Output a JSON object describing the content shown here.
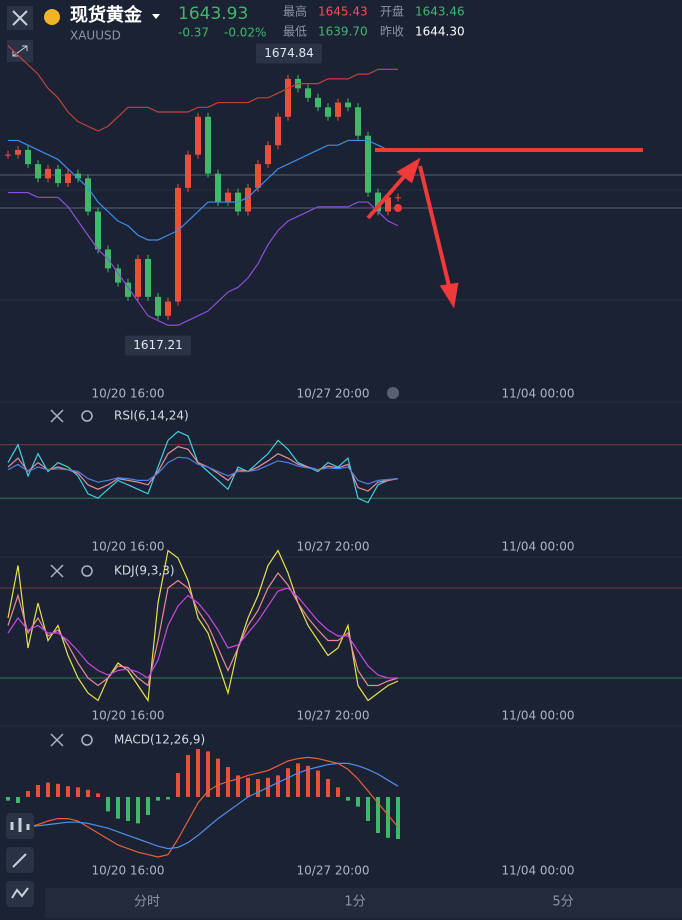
{
  "header": {
    "name": "现货黄金",
    "symbol": "XAUUSD",
    "price": "1643.93",
    "change": "-0.37",
    "change_pct": "-0.02%",
    "stats": [
      {
        "label": "最高",
        "value": "1645.43",
        "color": "#f0524f"
      },
      {
        "label": "开盘",
        "value": "1643.46",
        "color": "#3fb86a"
      },
      {
        "label": "最低",
        "value": "1639.70",
        "color": "#3fb86a"
      },
      {
        "label": "昨收",
        "value": "1644.30",
        "color": "#ffffff"
      }
    ]
  },
  "x_labels": [
    "10/20 16:00",
    "10/27 20:00",
    "11/04 00:00"
  ],
  "tabs": [
    "分时",
    "1分",
    "5分"
  ],
  "chart_data": [
    {
      "type": "candlestick",
      "ylim": [
        1615,
        1680
      ],
      "up_color": "#e8503a",
      "down_color": "#3fb86a",
      "closes": [
        1652,
        1653,
        1650,
        1647,
        1649,
        1646,
        1648,
        1647,
        1640,
        1632,
        1628,
        1625,
        1622,
        1630,
        1622,
        1618,
        1621,
        1645,
        1652,
        1660,
        1648,
        1642,
        1644,
        1640,
        1645,
        1650,
        1654,
        1660,
        1668,
        1666,
        1664,
        1662,
        1660,
        1663,
        1662,
        1656,
        1644,
        1640,
        1643,
        1643
      ],
      "lines": [
        {
          "color": "#c0433a",
          "values": [
            1675,
            1673,
            1671,
            1669,
            1666,
            1664,
            1661,
            1659,
            1658,
            1657,
            1658,
            1660,
            1662,
            1662,
            1662,
            1661,
            1661,
            1661,
            1661,
            1662,
            1662,
            1663,
            1663,
            1663,
            1663,
            1664,
            1664,
            1665,
            1666,
            1667,
            1667,
            1667,
            1668,
            1668,
            1668,
            1669,
            1669,
            1670,
            1670,
            1670
          ]
        },
        {
          "color": "#3d8ee8",
          "values": [
            1655,
            1655,
            1654,
            1653,
            1652,
            1651,
            1649,
            1647,
            1645,
            1642,
            1640,
            1638,
            1637,
            1635,
            1634,
            1634,
            1635,
            1636,
            1638,
            1640,
            1642,
            1642,
            1642,
            1642,
            1643,
            1645,
            1647,
            1649,
            1650,
            1651,
            1652,
            1653,
            1654,
            1654,
            1655,
            1655,
            1655,
            1654,
            1653,
            1653
          ]
        },
        {
          "color": "#8e4fd8",
          "values": [
            1644,
            1644,
            1644,
            1643,
            1643,
            1643,
            1641,
            1638,
            1635,
            1632,
            1630,
            1627,
            1624,
            1621,
            1618,
            1617,
            1616,
            1616,
            1617,
            1618,
            1619,
            1621,
            1623,
            1624,
            1626,
            1629,
            1633,
            1636,
            1638,
            1639,
            1640,
            1641,
            1641,
            1641,
            1641,
            1642,
            1642,
            1640,
            1638,
            1637
          ]
        }
      ],
      "annotations": [
        1674.84,
        1617.21
      ]
    },
    {
      "type": "line",
      "label": "RSI(6,14,24)",
      "ylim": [
        0,
        100
      ],
      "levels": [
        {
          "value": 80,
          "color": "#7a3b3f"
        },
        {
          "value": 20,
          "color": "#2f7a55"
        }
      ],
      "lines": [
        {
          "color": "#3fd0e0",
          "values": [
            60,
            80,
            45,
            70,
            50,
            60,
            55,
            45,
            25,
            20,
            30,
            40,
            35,
            30,
            25,
            55,
            85,
            95,
            90,
            60,
            50,
            40,
            30,
            55,
            50,
            60,
            70,
            85,
            75,
            60,
            55,
            50,
            60,
            55,
            65,
            20,
            15,
            35,
            40,
            42
          ]
        },
        {
          "color": "#e88a9a",
          "values": [
            55,
            65,
            50,
            60,
            52,
            55,
            52,
            48,
            35,
            30,
            35,
            42,
            40,
            38,
            35,
            50,
            70,
            78,
            75,
            60,
            55,
            48,
            40,
            52,
            50,
            55,
            62,
            70,
            65,
            58,
            55,
            52,
            56,
            54,
            58,
            32,
            28,
            38,
            40,
            42
          ]
        },
        {
          "color": "#4f7fe0",
          "values": [
            52,
            58,
            50,
            55,
            52,
            53,
            52,
            50,
            42,
            38,
            40,
            43,
            42,
            40,
            40,
            48,
            60,
            66,
            65,
            58,
            55,
            50,
            45,
            50,
            50,
            52,
            57,
            62,
            60,
            56,
            54,
            52,
            54,
            53,
            55,
            40,
            36,
            40,
            41,
            42
          ]
        }
      ]
    },
    {
      "type": "line",
      "label": "KDJ(9,3,3)",
      "ylim": [
        0,
        100
      ],
      "levels": [
        {
          "value": 80,
          "color": "#7a3b3f"
        },
        {
          "value": 20,
          "color": "#2f7a55"
        }
      ],
      "lines": [
        {
          "color": "#e8e04a",
          "values": [
            60,
            95,
            40,
            70,
            45,
            55,
            35,
            20,
            10,
            5,
            20,
            30,
            25,
            15,
            5,
            70,
            105,
            100,
            85,
            60,
            50,
            30,
            10,
            40,
            60,
            75,
            95,
            105,
            90,
            70,
            55,
            45,
            35,
            40,
            55,
            15,
            5,
            10,
            15,
            18
          ]
        },
        {
          "color": "#e88a9a",
          "values": [
            55,
            75,
            50,
            60,
            48,
            52,
            42,
            30,
            20,
            15,
            20,
            28,
            27,
            20,
            15,
            45,
            80,
            85,
            80,
            65,
            55,
            40,
            25,
            40,
            55,
            65,
            80,
            90,
            82,
            70,
            60,
            52,
            45,
            45,
            50,
            25,
            15,
            15,
            18,
            20
          ]
        },
        {
          "color": "#c848e0",
          "values": [
            50,
            60,
            52,
            55,
            50,
            50,
            45,
            38,
            30,
            25,
            22,
            25,
            26,
            24,
            20,
            32,
            55,
            68,
            75,
            70,
            62,
            52,
            40,
            42,
            50,
            58,
            68,
            78,
            80,
            74,
            66,
            58,
            52,
            48,
            48,
            38,
            28,
            22,
            20,
            20
          ]
        }
      ]
    },
    {
      "type": "macd",
      "label": "MACD(12,26,9)",
      "ylim": [
        -6,
        5
      ],
      "up_color": "#e8503a",
      "down_color": "#3fb86a",
      "histogram": [
        -0.3,
        -0.5,
        0.5,
        1,
        1.2,
        1.1,
        0.9,
        0.8,
        0.6,
        0.3,
        -1.2,
        -1.8,
        -2,
        -2.2,
        -1.5,
        -0.3,
        -0.2,
        2,
        3.5,
        4,
        3.8,
        3.2,
        2.5,
        1.8,
        1.6,
        1.5,
        1.6,
        1.8,
        2.4,
        2.8,
        2.6,
        2.2,
        1.5,
        0.8,
        -0.3,
        -0.8,
        -2,
        -3,
        -3.4,
        -3.5
      ],
      "lines": [
        {
          "color": "#e8603a",
          "values": [
            -2,
            -2.5,
            -2.5,
            -2.3,
            -2,
            -1.8,
            -1.8,
            -2,
            -2.5,
            -3,
            -3.5,
            -4,
            -4.3,
            -4.6,
            -4.8,
            -5,
            -4.8,
            -3.5,
            -2,
            -0.5,
            0.5,
            1,
            1.3,
            1.5,
            1.8,
            2,
            2.2,
            2.6,
            3,
            3.2,
            3.3,
            3.2,
            3,
            2.8,
            2.3,
            1.5,
            0.5,
            -0.5,
            -1.5,
            -2.5
          ]
        },
        {
          "color": "#4f8fe8",
          "values": [
            -2.5,
            -2.5,
            -2.5,
            -2.4,
            -2.3,
            -2.2,
            -2.1,
            -2.1,
            -2.2,
            -2.4,
            -2.6,
            -2.9,
            -3.2,
            -3.5,
            -3.8,
            -4.1,
            -4.3,
            -4.2,
            -3.8,
            -3.2,
            -2.5,
            -1.8,
            -1.2,
            -0.6,
            0,
            0.4,
            0.8,
            1.2,
            1.6,
            2,
            2.3,
            2.5,
            2.7,
            2.8,
            2.8,
            2.6,
            2.3,
            1.9,
            1.4,
            0.9
          ]
        }
      ]
    }
  ]
}
